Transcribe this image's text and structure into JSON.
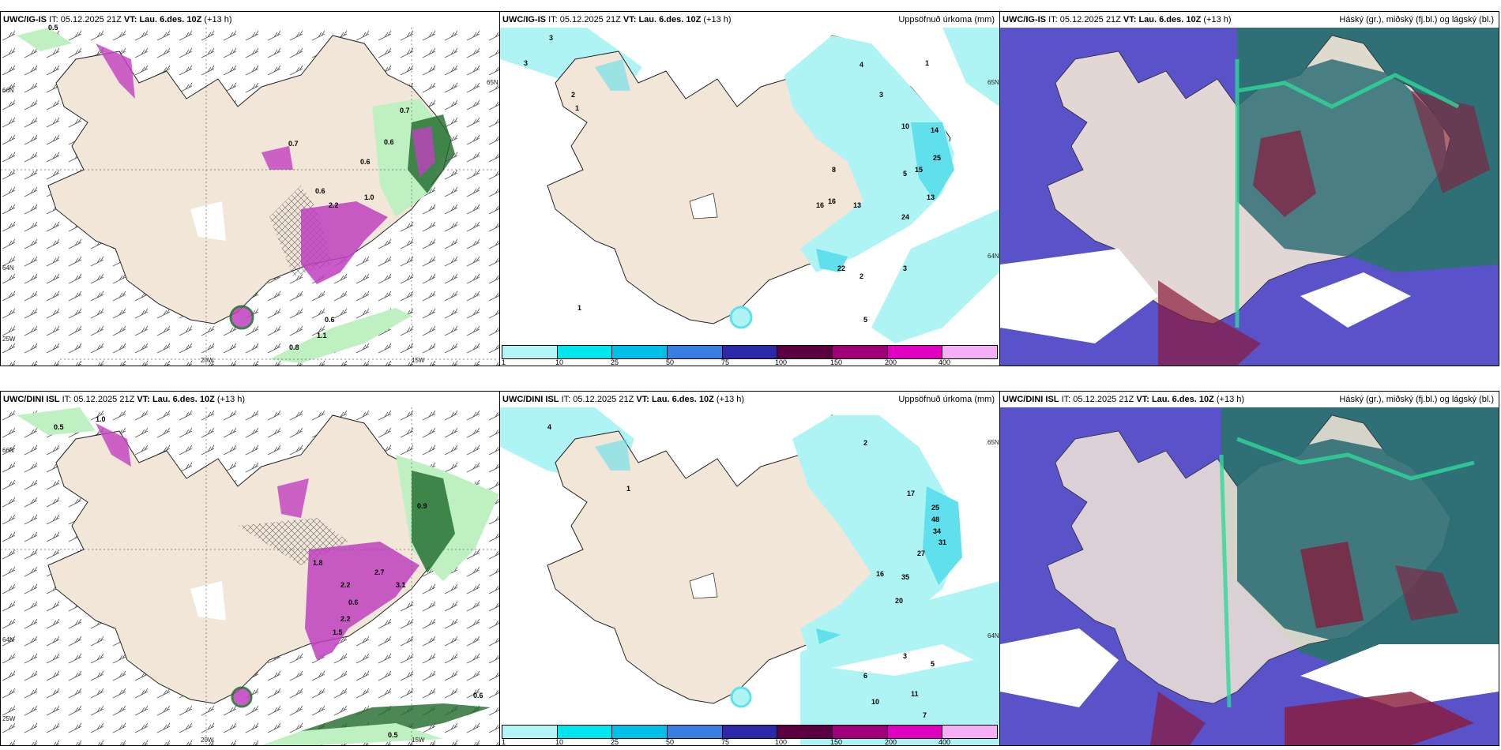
{
  "panels": {
    "top_left": {
      "model": "UWC/IG-IS",
      "it_label": "IT:",
      "it_value": "05.12.2025 21Z",
      "vt_label": "VT:",
      "vt_value": "Lau. 6.des. 10Z",
      "lead": "(+13 h)",
      "right": ""
    },
    "top_mid": {
      "model": "UWC/IG-IS",
      "it_label": "IT:",
      "it_value": "05.12.2025 21Z",
      "vt_label": "VT:",
      "vt_value": "Lau. 6.des. 10Z",
      "lead": "(+13 h)",
      "right": "Uppsöfnuð úrkoma (mm)"
    },
    "top_right": {
      "model": "UWC/IG-IS",
      "it_label": "IT:",
      "it_value": "05.12.2025 21Z",
      "vt_label": "VT:",
      "vt_value": "Lau. 6.des. 10Z",
      "lead": "(+13 h)",
      "right": "Háský (gr.), miðský (fj.bl.) og lágský (bl.)"
    },
    "bottom_left": {
      "model": "UWC/DINI ISL",
      "it_label": "IT:",
      "it_value": "05.12.2025 21Z",
      "vt_label": "VT:",
      "vt_value": "Lau. 6.des. 10Z",
      "lead": "(+13 h)",
      "right": ""
    },
    "bottom_mid": {
      "model": "UWC/DINI ISL",
      "it_label": "IT:",
      "it_value": "05.12.2025 21Z",
      "vt_label": "VT:",
      "vt_value": "Lau. 6.des. 10Z",
      "lead": "(+13 h)",
      "right": "Uppsöfnuð úrkoma (mm)"
    },
    "bottom_right": {
      "model": "UWC/DINI ISL",
      "it_label": "IT:",
      "it_value": "05.12.2025 21Z",
      "vt_label": "VT:",
      "vt_value": "Lau. 6.des. 10Z",
      "lead": "(+13 h)",
      "right": "Háský (gr.), miðský (fj.bl.) og lágský (bl.)"
    }
  },
  "axes": {
    "lat66": "66N",
    "lat64": "64N",
    "lat65": "65N",
    "lon20": "20W",
    "lon15": "15W",
    "lon25": "25W"
  },
  "legend": {
    "ticks": [
      "1",
      "10",
      "25",
      "50",
      "75",
      "100",
      "150",
      "200",
      "400"
    ],
    "colors": [
      "#b3f5f5",
      "#00e5ee",
      "#00bfe8",
      "#3a7de0",
      "#2a2aa8",
      "#5a0040",
      "#a0007a",
      "#e000c0",
      "#f5b0f5"
    ]
  },
  "colors": {
    "land": "#f2e6d8",
    "precip": "#aef4f4",
    "precip_mid": "#5fe0ec",
    "snow_light": "#bff0c2",
    "snow_dark": "#1e6a2a",
    "snow_mag": "#c040c0",
    "cloud_low": "#5a52c8",
    "cloud_mid": "#2f6f76",
    "cloud_high": "#8a1a3a",
    "cloud_green": "#2ed89a"
  },
  "values": {
    "tl": [
      "0.5",
      "0.7",
      "0.6",
      "0.7",
      "2.2",
      "1.0",
      "0.6",
      "0.6",
      "0.6",
      "1.1",
      "0.8"
    ],
    "tm": [
      "3",
      "3",
      "1",
      "2",
      "1",
      "4",
      "3",
      "5",
      "8",
      "10",
      "14",
      "15",
      "25",
      "13",
      "24",
      "16",
      "13",
      "2",
      "5",
      "3",
      "1",
      "16",
      "22"
    ],
    "bl": [
      "0.5",
      "1.0",
      "1.8",
      "2.2",
      "2.7",
      "3.1",
      "0.6",
      "2.2",
      "1.5",
      "0.9",
      "0.6",
      "0.5"
    ],
    "bm": [
      "4",
      "1",
      "2",
      "17",
      "25",
      "48",
      "34",
      "31",
      "27",
      "35",
      "20",
      "10",
      "11",
      "7",
      "5",
      "3",
      "6",
      "16"
    ]
  }
}
